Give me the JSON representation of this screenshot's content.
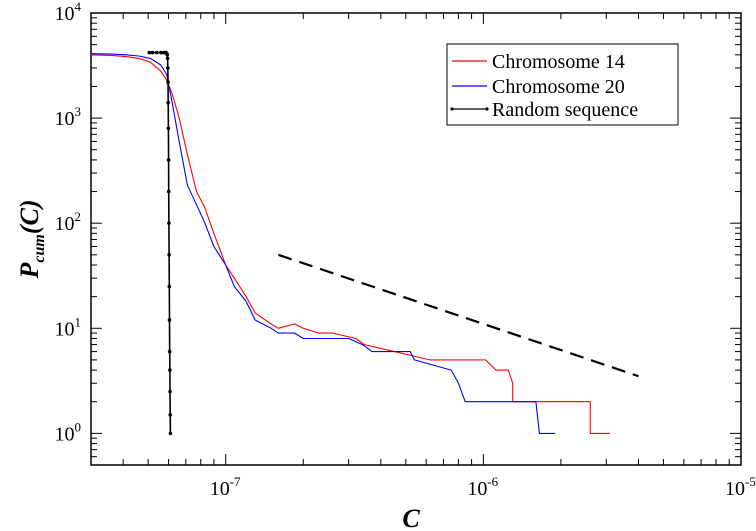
{
  "chart_data": {
    "type": "line",
    "x_scale": "log",
    "y_scale": "log",
    "xlim": [
      3e-08,
      1e-05
    ],
    "ylim": [
      0.5,
      10000
    ],
    "xlabel": {
      "main": "C"
    },
    "ylabel": {
      "main": "P",
      "sub": "cum",
      "rest": "(C)"
    },
    "x_ticks": [
      {
        "value": 1e-07,
        "base": "10",
        "exp": "-7"
      },
      {
        "value": 1e-06,
        "base": "10",
        "exp": "-6"
      },
      {
        "value": 1e-05,
        "base": "10",
        "exp": "-5"
      }
    ],
    "y_ticks": [
      {
        "value": 1,
        "base": "10",
        "exp": "0"
      },
      {
        "value": 10,
        "base": "10",
        "exp": "1"
      },
      {
        "value": 100,
        "base": "10",
        "exp": "2"
      },
      {
        "value": 1000,
        "base": "10",
        "exp": "3"
      },
      {
        "value": 10000,
        "base": "10",
        "exp": "4"
      }
    ],
    "legend_position": "top-right",
    "series": [
      {
        "name": "Chromosome 14",
        "color": "#ff0000",
        "x": [
          3e-08,
          3.6e-08,
          4.1e-08,
          4.6e-08,
          5.1e-08,
          5.6e-08,
          5.9e-08,
          6.2e-08,
          6.6e-08,
          7.1e-08,
          7.7e-08,
          8.3e-08,
          9e-08,
          1e-07,
          1.08e-07,
          1.2e-07,
          1.3e-07,
          1.5e-07,
          1.6e-07,
          1.85e-07,
          2e-07,
          2.3e-07,
          2.6e-07,
          3.2e-07,
          3.45e-07,
          6.2e-07,
          7.8e-07,
          1.02e-06,
          1.12e-06,
          1.25e-06,
          1.3e-06,
          1.3e-06,
          1.73e-06,
          1.73e-06,
          2.6e-06,
          2.6e-06,
          3.1e-06
        ],
        "y": [
          4000,
          3950,
          3850,
          3700,
          3400,
          2800,
          2300,
          1700,
          1000,
          450,
          200,
          140,
          80,
          40,
          30,
          20,
          14,
          11,
          10,
          11,
          10,
          9,
          9,
          8,
          7,
          5,
          5,
          5,
          4,
          4,
          3,
          2,
          2,
          2,
          2,
          1,
          1
        ]
      },
      {
        "name": "Chromosome 20",
        "color": "#0000ff",
        "x": [
          3e-08,
          3.6e-08,
          4.1e-08,
          4.6e-08,
          5.1e-08,
          5.6e-08,
          5.9e-08,
          6.2e-08,
          6.6e-08,
          7.1e-08,
          7.7e-08,
          8.3e-08,
          9e-08,
          1e-07,
          1.08e-07,
          1.2e-07,
          1.3e-07,
          1.5e-07,
          1.6e-07,
          1.85e-07,
          2e-07,
          2.5e-07,
          3e-07,
          3.4e-07,
          3.7e-07,
          4.1e-07,
          5.2e-07,
          5.4e-07,
          7.5e-07,
          8e-07,
          8.5e-07,
          1.1e-06,
          1.6e-06,
          1.65e-06,
          1.9e-06
        ],
        "y": [
          4100,
          4060,
          4000,
          3900,
          3700,
          3200,
          2600,
          1400,
          600,
          230,
          150,
          100,
          60,
          40,
          25,
          18,
          12,
          10,
          9,
          9,
          8,
          8,
          8,
          7,
          6,
          6,
          6,
          5,
          4,
          3,
          2,
          2,
          2,
          1,
          1
        ]
      },
      {
        "name": "Random sequence",
        "color": "#000000",
        "x": [
          5.05e-08,
          5.2e-08,
          5.4e-08,
          5.6e-08,
          5.75e-08,
          5.85e-08,
          5.9e-08,
          5.93e-08,
          5.95e-08,
          5.96e-08,
          5.97e-08,
          5.98e-08,
          5.99e-08,
          6e-08,
          6.01e-08,
          6.02e-08,
          6.03e-08,
          6.04e-08,
          6.05e-08,
          6.06e-08,
          6.07e-08,
          6.08e-08,
          6.09e-08,
          6.1e-08
        ],
        "y": [
          4200,
          4200,
          4200,
          4200,
          4200,
          4200,
          4150,
          4000,
          3700,
          3000,
          2200,
          1400,
          800,
          400,
          200,
          100,
          50,
          25,
          12,
          6,
          4,
          2.5,
          1.5,
          1
        ]
      }
    ],
    "reference_line": {
      "style": "dashed",
      "color": "#000000",
      "x": [
        1.6e-07,
        4e-06
      ],
      "y": [
        50,
        3.5
      ]
    }
  }
}
